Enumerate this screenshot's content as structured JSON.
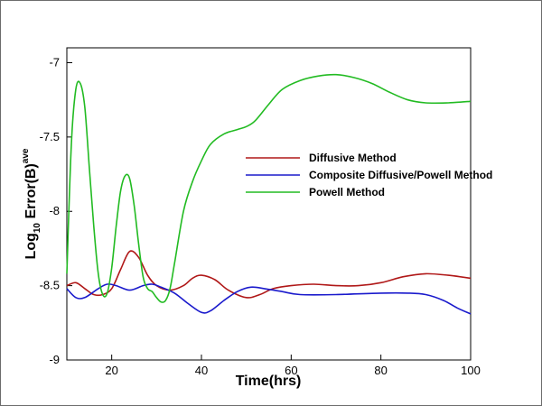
{
  "chart_data": {
    "type": "line",
    "title": "",
    "xlabel": "Time(hrs)",
    "ylabel_main": "Log",
    "ylabel_sub": "10",
    "ylabel_rest": " Error(B)",
    "ylabel_sup": "ave",
    "xlim": [
      10,
      100
    ],
    "ylim": [
      -9,
      -6.9
    ],
    "xticks": [
      20,
      40,
      60,
      80,
      100
    ],
    "yticks": [
      -9,
      -8.5,
      -8,
      -7.5,
      -7
    ],
    "grid": false,
    "legend_position": "center-right",
    "series": [
      {
        "name": "Diffusive Method",
        "color": "#b01818",
        "points": [
          [
            10,
            -8.5
          ],
          [
            12,
            -8.48
          ],
          [
            14,
            -8.52
          ],
          [
            16,
            -8.56
          ],
          [
            18,
            -8.56
          ],
          [
            20,
            -8.52
          ],
          [
            22,
            -8.39
          ],
          [
            24,
            -8.27
          ],
          [
            26,
            -8.31
          ],
          [
            28,
            -8.43
          ],
          [
            30,
            -8.5
          ],
          [
            33,
            -8.53
          ],
          [
            36,
            -8.5
          ],
          [
            38,
            -8.45
          ],
          [
            40,
            -8.43
          ],
          [
            43,
            -8.46
          ],
          [
            46,
            -8.53
          ],
          [
            50,
            -8.58
          ],
          [
            53,
            -8.56
          ],
          [
            56,
            -8.52
          ],
          [
            60,
            -8.5
          ],
          [
            65,
            -8.49
          ],
          [
            70,
            -8.5
          ],
          [
            75,
            -8.5
          ],
          [
            80,
            -8.48
          ],
          [
            85,
            -8.44
          ],
          [
            90,
            -8.42
          ],
          [
            95,
            -8.43
          ],
          [
            100,
            -8.45
          ]
        ]
      },
      {
        "name": "Composite Diffusive/Powell Method",
        "color": "#1a1acc",
        "points": [
          [
            10,
            -8.52
          ],
          [
            12,
            -8.58
          ],
          [
            14,
            -8.58
          ],
          [
            17,
            -8.52
          ],
          [
            19,
            -8.49
          ],
          [
            21,
            -8.5
          ],
          [
            24,
            -8.53
          ],
          [
            27,
            -8.5
          ],
          [
            29,
            -8.49
          ],
          [
            31,
            -8.51
          ],
          [
            34,
            -8.55
          ],
          [
            37,
            -8.62
          ],
          [
            40,
            -8.68
          ],
          [
            42,
            -8.67
          ],
          [
            45,
            -8.6
          ],
          [
            48,
            -8.54
          ],
          [
            51,
            -8.51
          ],
          [
            54,
            -8.52
          ],
          [
            58,
            -8.54
          ],
          [
            62,
            -8.56
          ],
          [
            70,
            -8.56
          ],
          [
            80,
            -8.55
          ],
          [
            86,
            -8.55
          ],
          [
            90,
            -8.56
          ],
          [
            94,
            -8.6
          ],
          [
            97,
            -8.65
          ],
          [
            100,
            -8.69
          ]
        ]
      },
      {
        "name": "Powell Method",
        "color": "#22bb22",
        "points": [
          [
            10,
            -8.42
          ],
          [
            11,
            -7.55
          ],
          [
            12,
            -7.18
          ],
          [
            13,
            -7.14
          ],
          [
            14,
            -7.3
          ],
          [
            15,
            -7.7
          ],
          [
            16,
            -8.1
          ],
          [
            17,
            -8.42
          ],
          [
            18,
            -8.56
          ],
          [
            19,
            -8.55
          ],
          [
            20,
            -8.38
          ],
          [
            21,
            -8.1
          ],
          [
            22,
            -7.86
          ],
          [
            23,
            -7.76
          ],
          [
            24,
            -7.78
          ],
          [
            25,
            -7.96
          ],
          [
            26,
            -8.22
          ],
          [
            27,
            -8.44
          ],
          [
            28,
            -8.52
          ],
          [
            29,
            -8.54
          ],
          [
            30,
            -8.58
          ],
          [
            31,
            -8.61
          ],
          [
            32,
            -8.6
          ],
          [
            33,
            -8.52
          ],
          [
            34,
            -8.35
          ],
          [
            36,
            -8.0
          ],
          [
            38,
            -7.8
          ],
          [
            40,
            -7.66
          ],
          [
            42,
            -7.55
          ],
          [
            45,
            -7.48
          ],
          [
            48,
            -7.45
          ],
          [
            50,
            -7.43
          ],
          [
            52,
            -7.39
          ],
          [
            55,
            -7.28
          ],
          [
            58,
            -7.18
          ],
          [
            62,
            -7.12
          ],
          [
            66,
            -7.09
          ],
          [
            70,
            -7.08
          ],
          [
            74,
            -7.1
          ],
          [
            78,
            -7.14
          ],
          [
            82,
            -7.2
          ],
          [
            86,
            -7.25
          ],
          [
            90,
            -7.27
          ],
          [
            95,
            -7.27
          ],
          [
            100,
            -7.26
          ]
        ]
      }
    ]
  }
}
